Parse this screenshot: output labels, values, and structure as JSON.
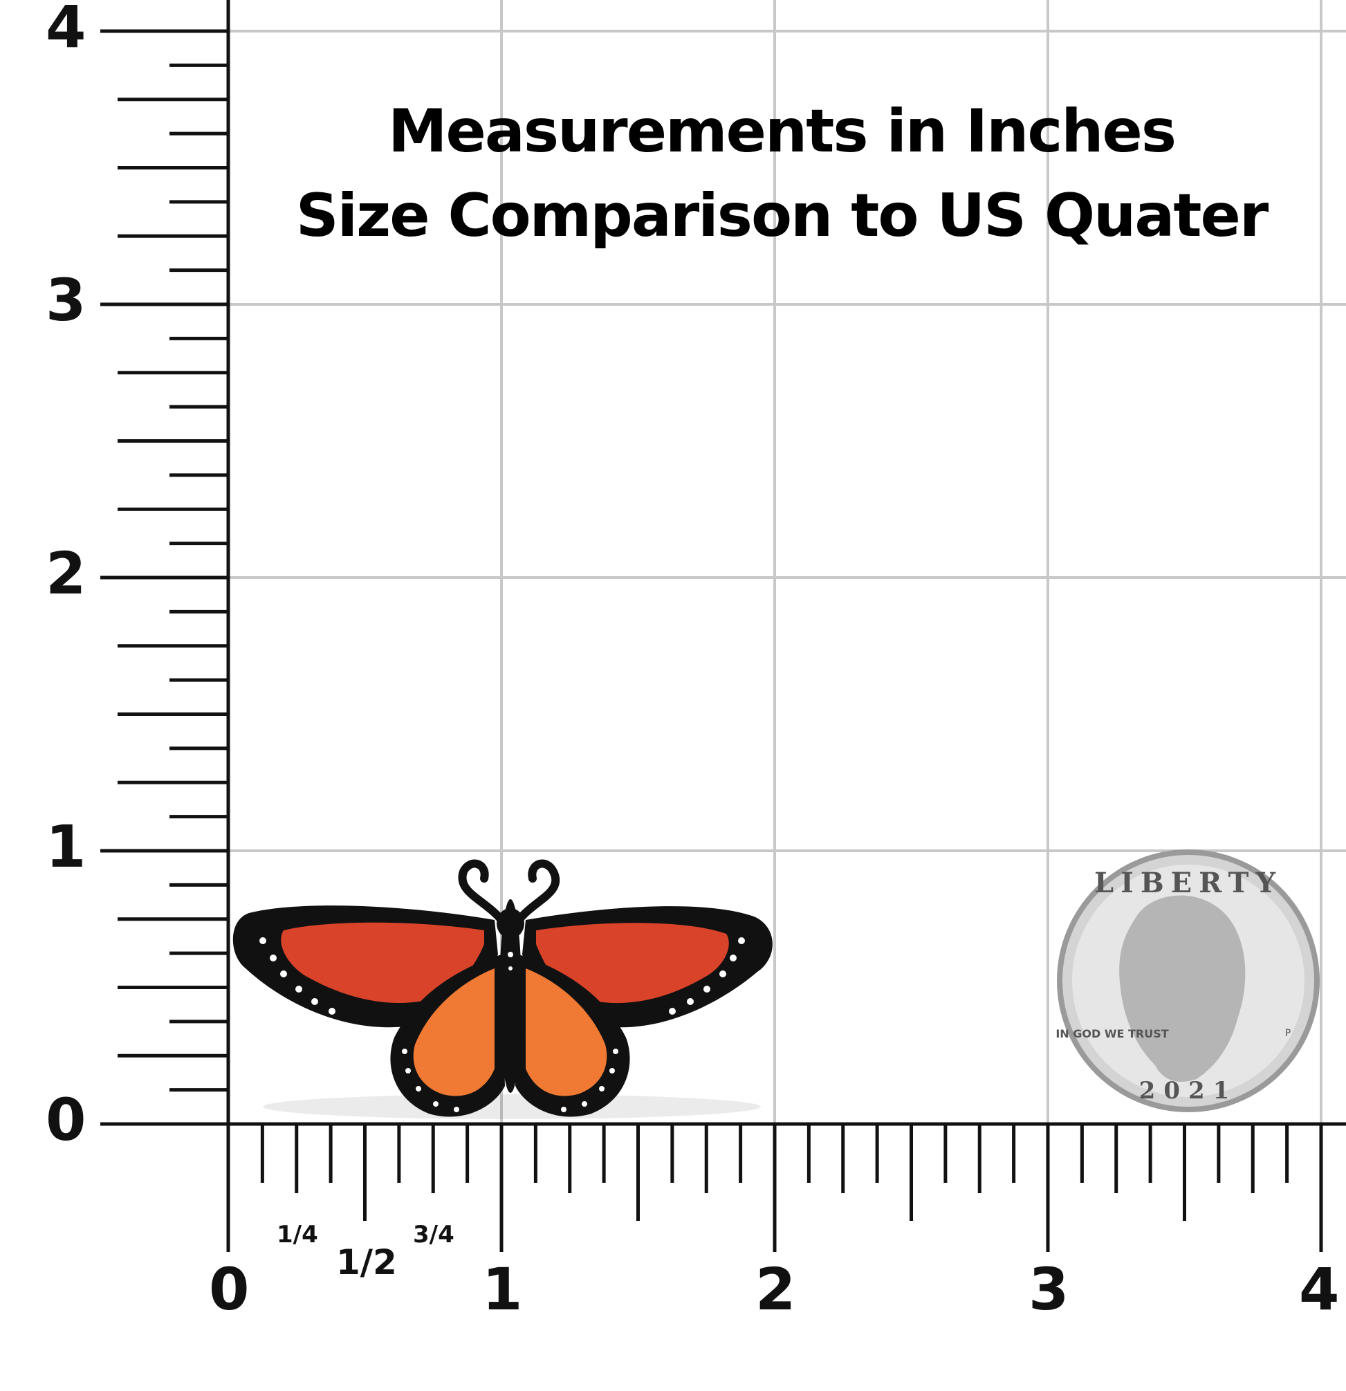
{
  "title": {
    "line1": "Measurements in Inches",
    "line2": "Size Comparison to US Quater"
  },
  "axes": {
    "unit": "inches",
    "x_labels": [
      "0",
      "1",
      "2",
      "3",
      "4"
    ],
    "y_labels": [
      "0",
      "1",
      "2",
      "3",
      "4"
    ],
    "fraction_labels": [
      "1/4",
      "1/2",
      "3/4"
    ],
    "range": [
      0,
      4
    ],
    "minor_tick_step": 0.125
  },
  "objects": {
    "butterfly": {
      "name": "monarch-butterfly-pin",
      "colors": {
        "outline": "#111111",
        "upper_wing": "#d9432a",
        "lower_wing": "#f07a33",
        "spots": "#ffffff"
      }
    },
    "coin": {
      "name": "us-quarter",
      "legend_top": "LIBERTY",
      "motto": "IN GOD WE TRUST",
      "year": "2021",
      "mint_mark": "P"
    }
  },
  "colors": {
    "grid": "#c8c8c8",
    "axis": "#111111",
    "background": "#ffffff"
  }
}
